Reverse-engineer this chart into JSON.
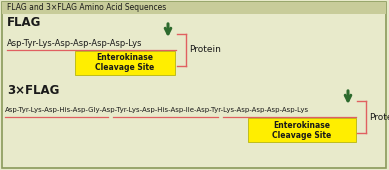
{
  "title": "FLAG and 3×FLAG Amino Acid Sequences",
  "bg_color": "#e8eacb",
  "border_color": "#8a9a5b",
  "title_bar_color": "#c8cc9a",
  "flag_label": "FLAG",
  "flag_sequence": "Asp-Tyr-Lys-Asp-Asp-Asp-Asp-Lys",
  "flag_cleavage_text1": "Enterokinase",
  "flag_cleavage_text2": "Cleavage Site",
  "protein_label": "Protein",
  "threeflag_label": "3×FLAG",
  "threeflag_sequence": "Asp-Tyr-Lys-Asp-His-Asp-Gly-Asp-Tyr-Lys-Asp-His-Asp-Ile-Asp-Tyr-Lys-Asp-Asp-Asp-Asp-Lys",
  "yellow_color": "#ffee00",
  "text_color": "#1a1a1a",
  "red_color": "#e06060",
  "green_color": "#2d6a2d",
  "title_fontsize": 5.5,
  "label_fontsize": 8.5,
  "seq_fontsize": 6.0,
  "cleavage_fontsize": 5.5,
  "protein_fontsize": 6.5
}
